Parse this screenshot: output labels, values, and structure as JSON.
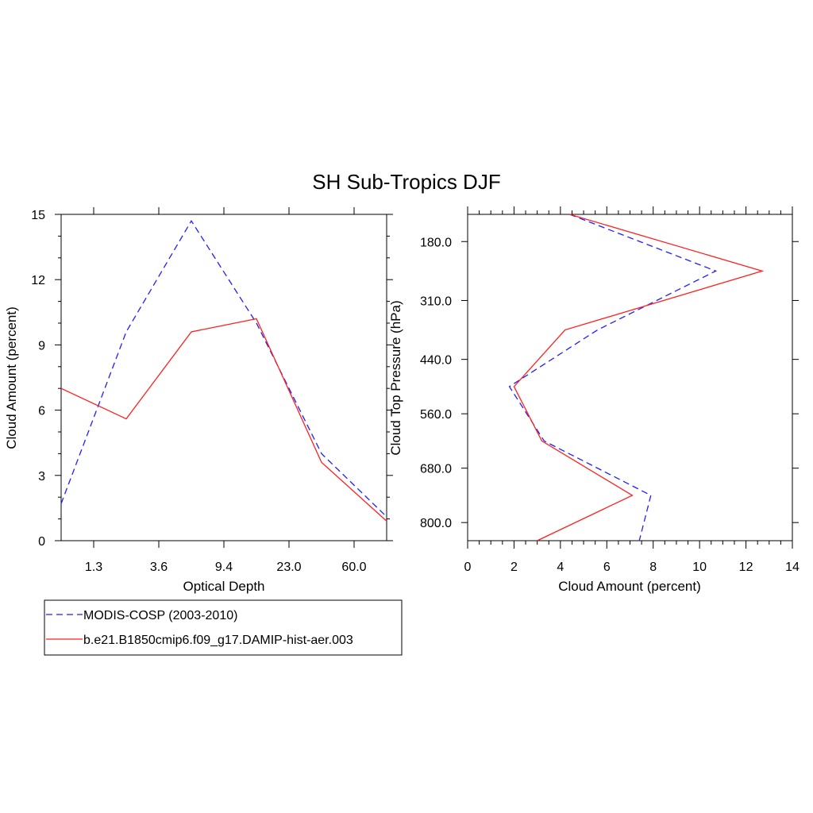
{
  "title": "SH Sub-Tropics DJF",
  "colors": {
    "modis": "#1f1fff",
    "model": "#ff1f1f",
    "axis": "#000000"
  },
  "legend": {
    "entries": [
      {
        "label": "MODIS-COSP (2003-2010)",
        "color": "#1f1fff",
        "dash": "dashed"
      },
      {
        "label": "b.e21.B1850cmip6.f09_g17.DAMIP-hist-aer.003",
        "color": "#ff1f1f",
        "dash": "solid"
      }
    ]
  },
  "chart_data": [
    {
      "type": "line",
      "panel": "left",
      "xlabel": "Optical Depth",
      "ylabel": "Cloud Amount (percent)",
      "x_index": [
        0,
        1,
        2,
        3,
        4,
        5
      ],
      "x_tick_labels": [
        "1.3",
        "3.6",
        "9.4",
        "23.0",
        "60.0"
      ],
      "ylim": [
        0,
        15
      ],
      "y_ticks": [
        0,
        3,
        6,
        9,
        12,
        15
      ],
      "series": [
        {
          "name": "MODIS-COSP (2003-2010)",
          "values": [
            1.7,
            9.6,
            14.7,
            10.0,
            4.0,
            1.1
          ]
        },
        {
          "name": "b.e21.B1850cmip6.f09_g17.DAMIP-hist-aer.003",
          "values": [
            7.0,
            5.6,
            9.6,
            10.2,
            3.6,
            0.9
          ]
        }
      ]
    },
    {
      "type": "line",
      "panel": "right",
      "xlabel": "Cloud Amount (percent)",
      "ylabel": "Cloud Top Pressure (hPa)",
      "xlim": [
        0,
        14
      ],
      "x_ticks": [
        0,
        2,
        4,
        6,
        8,
        10,
        12,
        14
      ],
      "y_tick_values": [
        180,
        310,
        440,
        560,
        680,
        800
      ],
      "y_tick_labels": [
        "180.0",
        "310.0",
        "440.0",
        "560.0",
        "680.0",
        "800.0"
      ],
      "ylim": [
        120,
        840
      ],
      "pressure_levels": [
        120,
        245,
        375,
        500,
        620,
        740,
        840
      ],
      "series": [
        {
          "name": "MODIS-COSP (2003-2010)",
          "values": [
            4.4,
            10.7,
            5.6,
            1.8,
            3.3,
            7.9,
            7.4
          ]
        },
        {
          "name": "b.e21.B1850cmip6.f09_g17.DAMIP-hist-aer.003",
          "values": [
            4.4,
            12.7,
            4.2,
            2.0,
            3.2,
            7.1,
            3.0
          ]
        }
      ]
    }
  ]
}
